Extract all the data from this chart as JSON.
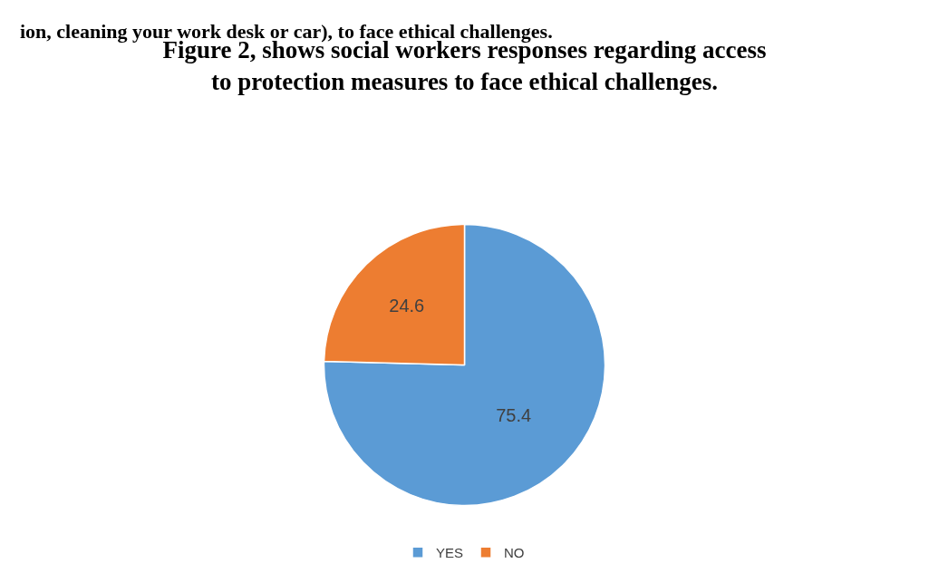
{
  "chart_data": {
    "type": "pie",
    "title": "Figure 2, shows social workers responses regarding access to protection measures to face ethical challenges.",
    "annotations": [
      "ion, cleaning your work desk or car), to face ethical challenges."
    ],
    "categories": [
      "YES",
      "NO"
    ],
    "values": [
      75.4,
      24.6
    ],
    "colors": [
      "#5b9bd5",
      "#ed7d31"
    ],
    "data_labels": true,
    "legend": "bottom"
  }
}
